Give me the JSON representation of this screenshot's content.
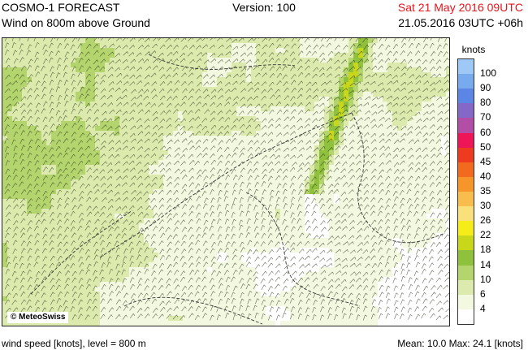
{
  "header": {
    "title": "COSMO-1 FORECAST",
    "subtitle": "Wind on 800m above Ground",
    "version": "Version: 100",
    "valid_time": "Sat 21 May 2016 09UTC",
    "run_info": "21.05.2016 03UTC +06h"
  },
  "map": {
    "credit": "© MeteoSwiss"
  },
  "legend": {
    "unit": "knots",
    "classes": [
      {
        "label": "100",
        "color": "#9ec8f5"
      },
      {
        "label": "90",
        "color": "#78aaee"
      },
      {
        "label": "80",
        "color": "#5b86e6"
      },
      {
        "label": "70",
        "color": "#8468c8"
      },
      {
        "label": "60",
        "color": "#b34ea6"
      },
      {
        "label": "50",
        "color": "#ee1657"
      },
      {
        "label": "45",
        "color": "#ee3a1e"
      },
      {
        "label": "40",
        "color": "#f26a1d"
      },
      {
        "label": "35",
        "color": "#f5952a"
      },
      {
        "label": "30",
        "color": "#f8bd4c"
      },
      {
        "label": "26",
        "color": "#fae07a"
      },
      {
        "label": "22",
        "color": "#f5ec1a"
      },
      {
        "label": "18",
        "color": "#c9d71b"
      },
      {
        "label": "14",
        "color": "#8fc13d"
      },
      {
        "label": "10",
        "color": "#b4d56d"
      },
      {
        "label": "6",
        "color": "#dcebad"
      },
      {
        "label": "4",
        "color": "#f3f8e0"
      },
      {
        "label": "",
        "color": "#ffffff"
      }
    ]
  },
  "footer": {
    "left": "wind speed [knots], level = 800 m",
    "right": "Mean:   10.0 Max:   24.1 [knots]"
  },
  "stats": {
    "mean": 10.0,
    "max": 24.1
  }
}
